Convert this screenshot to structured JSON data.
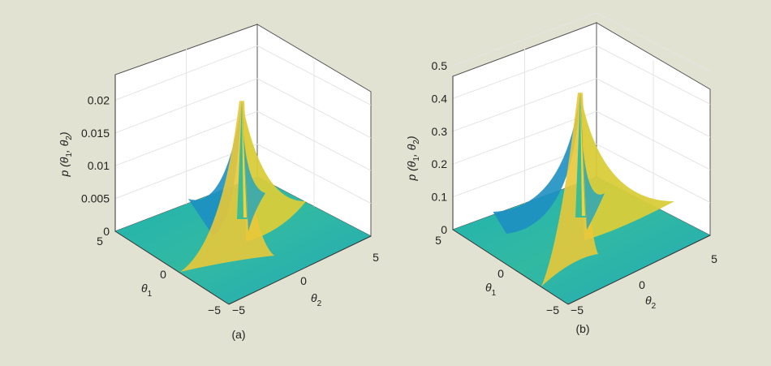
{
  "chart_data": [
    {
      "type": "surface",
      "panel_label": "(a)",
      "zlabel": {
        "main": "p (θ",
        "sub1": "1",
        "mid": ", θ",
        "sub2": "2",
        "end": ")"
      },
      "xlabel": {
        "main": "θ",
        "sub": "1"
      },
      "ylabel": {
        "main": "θ",
        "sub": "2"
      },
      "xlim": [
        -5,
        5
      ],
      "ylim": [
        -5,
        5
      ],
      "zlim": [
        0,
        0.025
      ],
      "x_ticks": [
        "5",
        "0",
        "−5"
      ],
      "y_ticks": [
        "−5",
        "0",
        "5"
      ],
      "z_ticks": [
        "0",
        "0.005",
        "0.01",
        "0.015",
        "0.02"
      ],
      "z_tick_values": [
        0,
        0.005,
        0.01,
        0.015,
        0.02
      ],
      "peak_value": 0.0205,
      "colormap": [
        "#1e8fc2",
        "#1fb2b0",
        "#3ebd92",
        "#c8c93a",
        "#f5d23a"
      ]
    },
    {
      "type": "surface",
      "panel_label": "(b)",
      "zlabel": {
        "main": "p (θ",
        "sub1": "1",
        "mid": ", θ",
        "sub2": "2",
        "end": ")"
      },
      "xlabel": {
        "main": "θ",
        "sub": "1"
      },
      "ylabel": {
        "main": "θ",
        "sub": "2"
      },
      "xlim": [
        -5,
        5
      ],
      "ylim": [
        -5,
        5
      ],
      "zlim": [
        0,
        0.5
      ],
      "x_ticks": [
        "5",
        "0",
        "−5"
      ],
      "y_ticks": [
        "−5",
        "0",
        "5"
      ],
      "z_ticks": [
        "0",
        "0.1",
        "0.2",
        "0.3",
        "0.4",
        "0.5"
      ],
      "z_tick_values": [
        0,
        0.1,
        0.2,
        0.3,
        0.4,
        0.5
      ],
      "peak_value": 0.43,
      "colormap": [
        "#1e8fc2",
        "#1fb2b0",
        "#3ebd92",
        "#c8c93a",
        "#f5d23a"
      ]
    }
  ]
}
